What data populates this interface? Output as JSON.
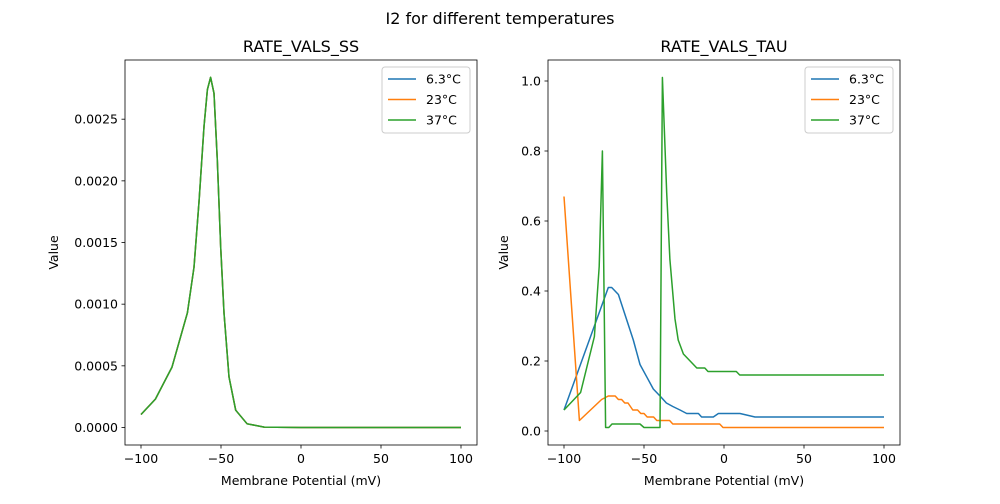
{
  "figure_title": "I2 for different temperatures",
  "chart_data": [
    {
      "type": "line",
      "title": "RATE_VALS_SS",
      "xlabel": "Membrane Potential (mV)",
      "ylabel": "Value",
      "xlim": [
        -110,
        110
      ],
      "ylim": [
        -0.000142,
        0.00298
      ],
      "xticks": [
        -100,
        -50,
        0,
        50,
        100
      ],
      "xtick_labels": [
        "−100",
        "−50",
        "0",
        "50",
        "100"
      ],
      "yticks": [
        0,
        0.0005,
        0.001,
        0.0015,
        0.002,
        0.0025
      ],
      "ytick_labels": [
        "0.0000",
        "0.0005",
        "0.0010",
        "0.0015",
        "0.0020",
        "0.0025"
      ],
      "grid": false,
      "legend_position": "top-right",
      "series": [
        {
          "name": "6.3°C",
          "color": "#1f77b4",
          "x": [
            -100,
            -91,
            -80.6,
            -71,
            -66.9,
            -63.7,
            -60.6,
            -58.5,
            -56.5,
            -54.4,
            -52.3,
            -50.2,
            -48.1,
            -45,
            -40.8,
            -33.7,
            -23,
            0,
            100
          ],
          "y": [
            0.000105,
            0.00023,
            0.00049,
            0.00093,
            0.0013,
            0.00184,
            0.00244,
            0.00274,
            0.00284,
            0.00271,
            0.00217,
            0.00146,
            0.00093,
            0.00041,
            0.00014,
            3e-05,
            3e-06,
            0,
            0
          ]
        },
        {
          "name": "23°C",
          "color": "#ff7f0e",
          "x": [
            -100,
            -91,
            -80.6,
            -71,
            -66.9,
            -63.7,
            -60.6,
            -58.5,
            -56.5,
            -54.4,
            -52.3,
            -50.2,
            -48.1,
            -45,
            -40.8,
            -33.7,
            -23,
            0,
            100
          ],
          "y": [
            0.000105,
            0.00023,
            0.00049,
            0.00093,
            0.0013,
            0.00184,
            0.00244,
            0.00274,
            0.00284,
            0.00271,
            0.00217,
            0.00146,
            0.00093,
            0.00041,
            0.00014,
            3e-05,
            3e-06,
            0,
            0
          ]
        },
        {
          "name": "37°C",
          "color": "#2ca02c",
          "x": [
            -100,
            -91,
            -80.6,
            -71,
            -66.9,
            -63.7,
            -60.6,
            -58.5,
            -56.5,
            -54.4,
            -52.3,
            -50.2,
            -48.1,
            -45,
            -40.8,
            -33.7,
            -23,
            0,
            100
          ],
          "y": [
            0.000105,
            0.00023,
            0.00049,
            0.00093,
            0.0013,
            0.00184,
            0.00244,
            0.00274,
            0.00284,
            0.00271,
            0.00217,
            0.00146,
            0.00093,
            0.00041,
            0.00014,
            3e-05,
            3e-06,
            0,
            0
          ]
        }
      ]
    },
    {
      "type": "line",
      "title": "RATE_VALS_TAU",
      "xlabel": "Membrane Potential (mV)",
      "ylabel": "Value",
      "xlim": [
        -110,
        110
      ],
      "ylim": [
        -0.04,
        1.06
      ],
      "xticks": [
        -100,
        -50,
        0,
        50,
        100
      ],
      "xtick_labels": [
        "−100",
        "−50",
        "0",
        "50",
        "100"
      ],
      "yticks": [
        0,
        0.2,
        0.4,
        0.6,
        0.8,
        1.0
      ],
      "ytick_labels": [
        "0.0",
        "0.2",
        "0.4",
        "0.6",
        "0.8",
        "1.0"
      ],
      "grid": false,
      "legend_position": "top-right",
      "series": [
        {
          "name": "6.3°C",
          "color": "#1f77b4",
          "x": [
            -100,
            -72.3,
            -70.2,
            -66,
            -56.7,
            -52.5,
            -48.3,
            -44.2,
            -40,
            -36,
            -32,
            -27.5,
            -23.3,
            -16,
            -14,
            -6.7,
            -3.5,
            10,
            19.4,
            100
          ],
          "y": [
            0.06,
            0.41,
            0.41,
            0.39,
            0.26,
            0.19,
            0.155,
            0.12,
            0.1,
            0.08,
            0.07,
            0.06,
            0.05,
            0.05,
            0.04,
            0.04,
            0.05,
            0.05,
            0.04,
            0.04
          ]
        },
        {
          "name": "23°C",
          "color": "#ff7f0e",
          "x": [
            -100,
            -90.4,
            -76.5,
            -72.3,
            -68,
            -66,
            -64,
            -62,
            -60,
            -57,
            -54,
            -52,
            -50,
            -48,
            -44,
            -42,
            -34,
            -32,
            -2.7,
            -0.6,
            100
          ],
          "y": [
            0.67,
            0.03,
            0.09,
            0.1,
            0.1,
            0.09,
            0.09,
            0.08,
            0.08,
            0.06,
            0.06,
            0.05,
            0.05,
            0.04,
            0.04,
            0.03,
            0.03,
            0.02,
            0.02,
            0.01,
            0.01
          ]
        },
        {
          "name": "37°C",
          "color": "#2ca02c",
          "x": [
            -100,
            -89.6,
            -81,
            -78,
            -76,
            -74,
            -72,
            -70,
            -52.5,
            -50,
            -40,
            -38.5,
            -35.8,
            -33.8,
            -30.6,
            -28.6,
            -25.4,
            -17,
            -12,
            -10,
            7.7,
            9.8,
            100
          ],
          "y": [
            0.06,
            0.11,
            0.27,
            0.47,
            0.8,
            0.01,
            0.01,
            0.02,
            0.02,
            0.01,
            0.01,
            1.01,
            0.68,
            0.49,
            0.32,
            0.26,
            0.22,
            0.18,
            0.18,
            0.17,
            0.17,
            0.16,
            0.16
          ]
        }
      ]
    }
  ]
}
